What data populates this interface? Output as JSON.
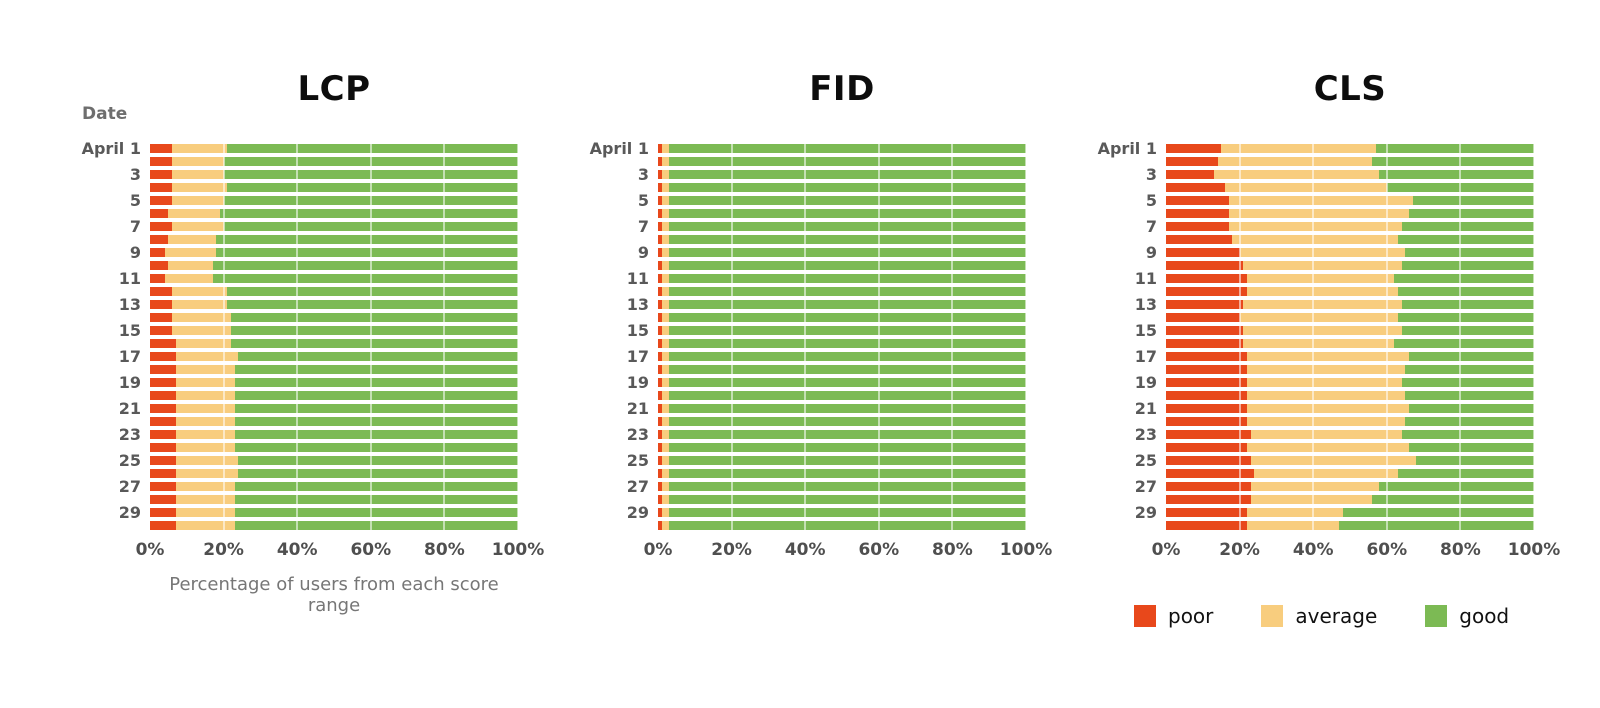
{
  "colors": {
    "poor": "#e8481b",
    "average": "#f8cd7e",
    "good": "#7cba54"
  },
  "date_axis_label": "Date",
  "x_axis_caption": "Percentage of users from each score range",
  "x_ticks": [
    "0%",
    "20%",
    "40%",
    "60%",
    "80%",
    "100%"
  ],
  "y_tick_labels": [
    "April 1",
    "3",
    "5",
    "7",
    "9",
    "11",
    "13",
    "15",
    "17",
    "19",
    "21",
    "23",
    "25",
    "27",
    "29"
  ],
  "legend": [
    {
      "label": "poor",
      "color": "#e8481b"
    },
    {
      "label": "average",
      "color": "#f8cd7e"
    },
    {
      "label": "good",
      "color": "#7cba54"
    }
  ],
  "chart_data": [
    {
      "type": "bar",
      "subtype": "horizontal-stacked",
      "title": "LCP",
      "xlabel": "Percentage of users from each score range",
      "ylabel": "Date",
      "xlim": [
        0,
        100
      ],
      "x_tick_values": [
        0,
        20,
        40,
        60,
        80,
        100
      ],
      "grid": true,
      "categories": [
        "April 1",
        "April 2",
        "April 3",
        "April 4",
        "April 5",
        "April 6",
        "April 7",
        "April 8",
        "April 9",
        "April 10",
        "April 11",
        "April 12",
        "April 13",
        "April 14",
        "April 15",
        "April 16",
        "April 17",
        "April 18",
        "April 19",
        "April 20",
        "April 21",
        "April 22",
        "April 23",
        "April 24",
        "April 25",
        "April 26",
        "April 27",
        "April 28",
        "April 29",
        "April 30"
      ],
      "series": [
        {
          "name": "poor",
          "values": [
            6,
            6,
            6,
            6,
            6,
            5,
            6,
            5,
            4,
            5,
            4,
            6,
            6,
            6,
            6,
            7,
            7,
            7,
            7,
            7,
            7,
            7,
            7,
            7,
            7,
            7,
            7,
            7,
            7,
            7
          ]
        },
        {
          "name": "average",
          "values": [
            15,
            14,
            14,
            15,
            14,
            14,
            14,
            13,
            14,
            12,
            13,
            15,
            15,
            16,
            16,
            15,
            17,
            16,
            16,
            16,
            16,
            16,
            16,
            16,
            17,
            17,
            16,
            16,
            16,
            16
          ]
        },
        {
          "name": "good",
          "values": [
            79,
            80,
            80,
            79,
            80,
            81,
            80,
            82,
            82,
            83,
            83,
            79,
            79,
            78,
            78,
            78,
            76,
            77,
            77,
            77,
            77,
            77,
            77,
            77,
            76,
            76,
            77,
            77,
            77,
            77
          ]
        }
      ]
    },
    {
      "type": "bar",
      "subtype": "horizontal-stacked",
      "title": "FID",
      "ylabel": "Date",
      "xlim": [
        0,
        100
      ],
      "x_tick_values": [
        0,
        20,
        40,
        60,
        80,
        100
      ],
      "grid": true,
      "categories": [
        "April 1",
        "April 2",
        "April 3",
        "April 4",
        "April 5",
        "April 6",
        "April 7",
        "April 8",
        "April 9",
        "April 10",
        "April 11",
        "April 12",
        "April 13",
        "April 14",
        "April 15",
        "April 16",
        "April 17",
        "April 18",
        "April 19",
        "April 20",
        "April 21",
        "April 22",
        "April 23",
        "April 24",
        "April 25",
        "April 26",
        "April 27",
        "April 28",
        "April 29",
        "April 30"
      ],
      "series": [
        {
          "name": "poor",
          "values": [
            1,
            1,
            1,
            1,
            1,
            1,
            1,
            1,
            1,
            1,
            1,
            1,
            1,
            1,
            1,
            1,
            1,
            1,
            1,
            1,
            1,
            1,
            1,
            1,
            1,
            1,
            1,
            1,
            1,
            1
          ]
        },
        {
          "name": "average",
          "values": [
            2,
            2,
            2,
            2,
            2,
            2,
            2,
            2,
            2,
            2,
            2,
            2,
            2,
            2,
            2,
            2,
            2,
            2,
            2,
            2,
            2,
            2,
            2,
            2,
            2,
            2,
            2,
            2,
            2,
            2
          ]
        },
        {
          "name": "good",
          "values": [
            97,
            97,
            97,
            97,
            97,
            97,
            97,
            97,
            97,
            97,
            97,
            97,
            97,
            97,
            97,
            97,
            97,
            97,
            97,
            97,
            97,
            97,
            97,
            97,
            97,
            97,
            97,
            97,
            97,
            97
          ]
        }
      ]
    },
    {
      "type": "bar",
      "subtype": "horizontal-stacked",
      "title": "CLS",
      "ylabel": "Date",
      "xlim": [
        0,
        100
      ],
      "x_tick_values": [
        0,
        20,
        40,
        60,
        80,
        100
      ],
      "grid": true,
      "legend_position": "bottom-right",
      "categories": [
        "April 1",
        "April 2",
        "April 3",
        "April 4",
        "April 5",
        "April 6",
        "April 7",
        "April 8",
        "April 9",
        "April 10",
        "April 11",
        "April 12",
        "April 13",
        "April 14",
        "April 15",
        "April 16",
        "April 17",
        "April 18",
        "April 19",
        "April 20",
        "April 21",
        "April 22",
        "April 23",
        "April 24",
        "April 25",
        "April 26",
        "April 27",
        "April 28",
        "April 29",
        "April 30"
      ],
      "series": [
        {
          "name": "poor",
          "values": [
            15,
            14,
            13,
            16,
            17,
            17,
            17,
            18,
            20,
            21,
            22,
            22,
            21,
            20,
            21,
            21,
            22,
            22,
            22,
            22,
            22,
            22,
            23,
            22,
            23,
            24,
            23,
            23,
            22,
            22
          ]
        },
        {
          "name": "average",
          "values": [
            42,
            42,
            45,
            44,
            50,
            49,
            47,
            45,
            45,
            43,
            40,
            41,
            43,
            43,
            43,
            41,
            44,
            43,
            42,
            43,
            44,
            43,
            41,
            44,
            45,
            39,
            35,
            33,
            26,
            25
          ]
        },
        {
          "name": "good",
          "values": [
            43,
            44,
            42,
            40,
            33,
            34,
            36,
            37,
            35,
            36,
            38,
            37,
            36,
            37,
            36,
            38,
            34,
            35,
            36,
            35,
            34,
            35,
            36,
            34,
            32,
            37,
            42,
            44,
            52,
            53
          ]
        }
      ]
    }
  ]
}
